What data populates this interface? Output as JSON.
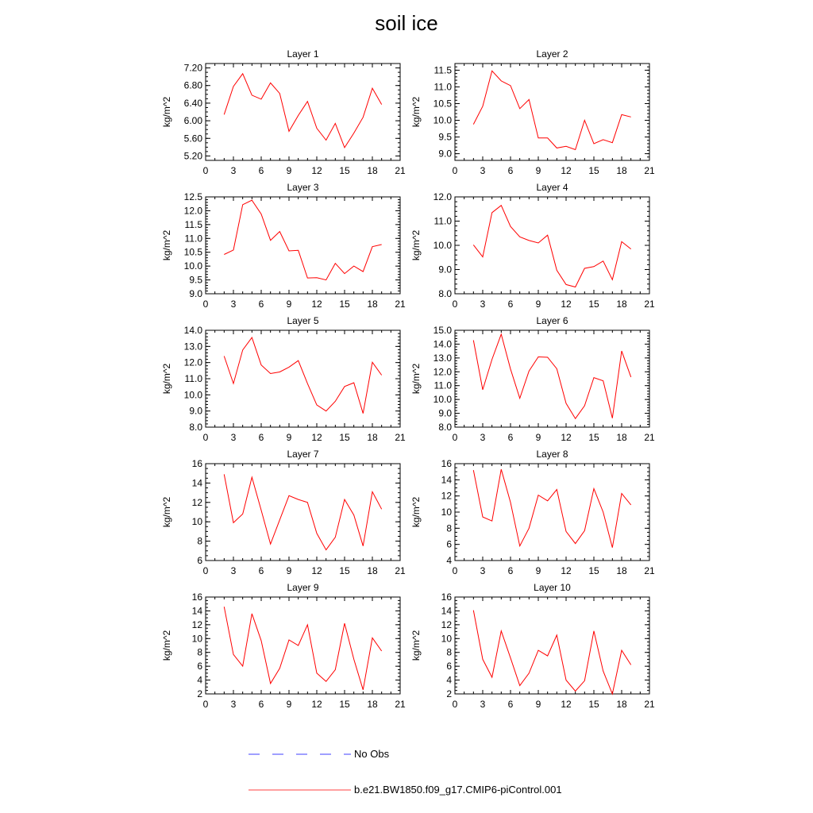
{
  "title": "soil ice",
  "legend": [
    {
      "label": "No Obs",
      "color": "#0000ff",
      "style": "dashed"
    },
    {
      "label": "b.e21.BW1850.f09_g17.CMIP6-piControl.001",
      "color": "#ff0000",
      "style": "solid"
    }
  ],
  "chart_data": [
    {
      "type": "line",
      "title": "Layer 1",
      "ylabel": "kg/m^2",
      "xlabel": "",
      "xlim": [
        0,
        21
      ],
      "xticks": [
        "0",
        "3",
        "6",
        "9",
        "12",
        "15",
        "18",
        "21"
      ],
      "ylim": [
        5.1,
        7.3
      ],
      "yticks": [
        "5.20",
        "5.60",
        "6.00",
        "6.40",
        "6.80",
        "7.20"
      ],
      "yminor": 0.1,
      "series": [
        {
          "name": "b.e21.BW1850.f09_g17.CMIP6-piControl.001",
          "color": "#ff0000",
          "x": [
            2,
            3,
            4,
            5,
            6,
            7,
            8,
            9,
            10,
            11,
            12,
            13,
            14,
            15,
            16,
            17,
            18,
            19
          ],
          "y": [
            6.14,
            6.78,
            7.07,
            6.58,
            6.49,
            6.86,
            6.62,
            5.76,
            6.12,
            6.44,
            5.83,
            5.56,
            5.94,
            5.39,
            5.72,
            6.08,
            6.74,
            6.37
          ]
        }
      ]
    },
    {
      "type": "line",
      "title": "Layer 2",
      "ylabel": "kg/m^2",
      "xlabel": "",
      "xlim": [
        0,
        21
      ],
      "xticks": [
        "0",
        "3",
        "6",
        "9",
        "12",
        "15",
        "18",
        "21"
      ],
      "ylim": [
        8.8,
        11.7
      ],
      "yticks": [
        "9.0",
        "9.5",
        "10.0",
        "10.5",
        "11.0",
        "11.5"
      ],
      "yminor": 0.1,
      "series": [
        {
          "name": "b.e21.BW1850.f09_g17.CMIP6-piControl.001",
          "color": "#ff0000",
          "x": [
            2,
            3,
            4,
            5,
            6,
            7,
            8,
            9,
            10,
            11,
            12,
            13,
            14,
            15,
            16,
            17,
            18,
            19
          ],
          "y": [
            9.88,
            10.42,
            11.48,
            11.18,
            11.04,
            10.35,
            10.62,
            9.47,
            9.47,
            9.17,
            9.22,
            9.12,
            10.0,
            9.3,
            9.42,
            9.33,
            10.17,
            10.1
          ]
        }
      ]
    },
    {
      "type": "line",
      "title": "Layer 3",
      "ylabel": "kg/m^2",
      "xlabel": "",
      "xlim": [
        0,
        21
      ],
      "xticks": [
        "0",
        "3",
        "6",
        "9",
        "12",
        "15",
        "18",
        "21"
      ],
      "ylim": [
        9.0,
        12.5
      ],
      "yticks": [
        "9.0",
        "9.5",
        "10.0",
        "10.5",
        "11.0",
        "11.5",
        "12.0",
        "12.5"
      ],
      "yminor": 0.1,
      "series": [
        {
          "name": "b.e21.BW1850.f09_g17.CMIP6-piControl.001",
          "color": "#ff0000",
          "x": [
            2,
            3,
            4,
            5,
            6,
            7,
            8,
            9,
            10,
            11,
            12,
            13,
            14,
            15,
            16,
            17,
            18,
            19
          ],
          "y": [
            10.42,
            10.58,
            12.22,
            12.38,
            11.88,
            10.93,
            11.25,
            10.55,
            10.57,
            9.57,
            9.58,
            9.5,
            10.1,
            9.73,
            10.0,
            9.8,
            10.7,
            10.78
          ]
        }
      ]
    },
    {
      "type": "line",
      "title": "Layer 4",
      "ylabel": "kg/m^2",
      "xlabel": "",
      "xlim": [
        0,
        21
      ],
      "xticks": [
        "0",
        "3",
        "6",
        "9",
        "12",
        "15",
        "18",
        "21"
      ],
      "ylim": [
        8.0,
        12.0
      ],
      "yticks": [
        "8.0",
        "9.0",
        "10.0",
        "11.0",
        "12.0"
      ],
      "yminor": 0.2,
      "series": [
        {
          "name": "b.e21.BW1850.f09_g17.CMIP6-piControl.001",
          "color": "#ff0000",
          "x": [
            2,
            3,
            4,
            5,
            6,
            7,
            8,
            9,
            10,
            11,
            12,
            13,
            14,
            15,
            16,
            17,
            18,
            19
          ],
          "y": [
            10.02,
            9.52,
            11.35,
            11.65,
            10.78,
            10.35,
            10.2,
            10.1,
            10.42,
            8.97,
            8.38,
            8.28,
            9.05,
            9.12,
            9.35,
            8.58,
            10.15,
            9.85
          ]
        }
      ]
    },
    {
      "type": "line",
      "title": "Layer 5",
      "ylabel": "kg/m^2",
      "xlabel": "",
      "xlim": [
        0,
        21
      ],
      "xticks": [
        "0",
        "3",
        "6",
        "9",
        "12",
        "15",
        "18",
        "21"
      ],
      "ylim": [
        8.0,
        14.0
      ],
      "yticks": [
        "8.0",
        "9.0",
        "10.0",
        "11.0",
        "12.0",
        "13.0",
        "14.0"
      ],
      "yminor": 0.2,
      "series": [
        {
          "name": "b.e21.BW1850.f09_g17.CMIP6-piControl.001",
          "color": "#ff0000",
          "x": [
            2,
            3,
            4,
            5,
            6,
            7,
            8,
            9,
            10,
            11,
            12,
            13,
            14,
            15,
            16,
            17,
            18,
            19
          ],
          "y": [
            12.4,
            10.7,
            12.78,
            13.55,
            11.85,
            11.32,
            11.42,
            11.72,
            12.12,
            10.7,
            9.37,
            9.0,
            9.6,
            10.52,
            10.75,
            8.85,
            12.02,
            11.22
          ]
        }
      ]
    },
    {
      "type": "line",
      "title": "Layer 6",
      "ylabel": "kg/m^2",
      "xlabel": "",
      "xlim": [
        0,
        21
      ],
      "xticks": [
        "0",
        "3",
        "6",
        "9",
        "12",
        "15",
        "18",
        "21"
      ],
      "ylim": [
        8.0,
        15.0
      ],
      "yticks": [
        "8.0",
        "9.0",
        "10.0",
        "11.0",
        "12.0",
        "13.0",
        "14.0",
        "15.0"
      ],
      "yminor": 0.2,
      "series": [
        {
          "name": "b.e21.BW1850.f09_g17.CMIP6-piControl.001",
          "color": "#ff0000",
          "x": [
            2,
            3,
            4,
            5,
            6,
            7,
            8,
            9,
            10,
            11,
            12,
            13,
            14,
            15,
            16,
            17,
            18,
            19
          ],
          "y": [
            14.28,
            10.7,
            12.9,
            14.72,
            12.2,
            10.08,
            12.05,
            13.08,
            13.05,
            12.22,
            9.72,
            8.62,
            9.55,
            11.58,
            11.35,
            8.65,
            13.5,
            11.62
          ]
        }
      ]
    },
    {
      "type": "line",
      "title": "Layer 7",
      "ylabel": "kg/m^2",
      "xlabel": "",
      "xlim": [
        0,
        21
      ],
      "xticks": [
        "0",
        "3",
        "6",
        "9",
        "12",
        "15",
        "18",
        "21"
      ],
      "ylim": [
        6,
        16
      ],
      "yticks": [
        "6",
        "8",
        "10",
        "12",
        "14",
        "16"
      ],
      "yminor": 0.5,
      "series": [
        {
          "name": "b.e21.BW1850.f09_g17.CMIP6-piControl.001",
          "color": "#ff0000",
          "x": [
            2,
            3,
            4,
            5,
            6,
            7,
            8,
            9,
            10,
            11,
            12,
            13,
            14,
            15,
            16,
            17,
            18,
            19
          ],
          "y": [
            14.9,
            9.9,
            10.8,
            14.6,
            11.2,
            7.7,
            10.2,
            12.7,
            12.3,
            12.0,
            8.8,
            7.1,
            8.4,
            12.3,
            10.7,
            7.5,
            13.1,
            11.3
          ]
        }
      ]
    },
    {
      "type": "line",
      "title": "Layer 8",
      "ylabel": "kg/m^2",
      "xlabel": "",
      "xlim": [
        0,
        21
      ],
      "xticks": [
        "0",
        "3",
        "6",
        "9",
        "12",
        "15",
        "18",
        "21"
      ],
      "ylim": [
        4,
        16
      ],
      "yticks": [
        "4",
        "6",
        "8",
        "10",
        "12",
        "14",
        "16"
      ],
      "yminor": 0.5,
      "series": [
        {
          "name": "b.e21.BW1850.f09_g17.CMIP6-piControl.001",
          "color": "#ff0000",
          "x": [
            2,
            3,
            4,
            5,
            6,
            7,
            8,
            9,
            10,
            11,
            12,
            13,
            14,
            15,
            16,
            17,
            18,
            19
          ],
          "y": [
            15.2,
            9.4,
            8.9,
            15.3,
            11.2,
            5.8,
            8.0,
            12.1,
            11.4,
            12.8,
            7.6,
            6.1,
            7.7,
            12.9,
            10.0,
            5.6,
            12.3,
            10.9
          ]
        }
      ]
    },
    {
      "type": "line",
      "title": "Layer 9",
      "ylabel": "kg/m^2",
      "xlabel": "",
      "xlim": [
        0,
        21
      ],
      "xticks": [
        "0",
        "3",
        "6",
        "9",
        "12",
        "15",
        "18",
        "21"
      ],
      "ylim": [
        2,
        16
      ],
      "yticks": [
        "2",
        "4",
        "6",
        "8",
        "10",
        "12",
        "14",
        "16"
      ],
      "yminor": 0.5,
      "series": [
        {
          "name": "b.e21.BW1850.f09_g17.CMIP6-piControl.001",
          "color": "#ff0000",
          "x": [
            2,
            3,
            4,
            5,
            6,
            7,
            8,
            9,
            10,
            11,
            12,
            13,
            14,
            15,
            16,
            17,
            18,
            19
          ],
          "y": [
            14.6,
            7.7,
            6.0,
            13.6,
            9.7,
            3.5,
            5.7,
            9.8,
            9.0,
            12.0,
            5.0,
            3.8,
            5.5,
            12.2,
            7.0,
            2.6,
            10.1,
            8.2
          ]
        }
      ]
    },
    {
      "type": "line",
      "title": "Layer 10",
      "ylabel": "kg/m^2",
      "xlabel": "",
      "xlim": [
        0,
        21
      ],
      "xticks": [
        "0",
        "3",
        "6",
        "9",
        "12",
        "15",
        "18",
        "21"
      ],
      "ylim": [
        2,
        16
      ],
      "yticks": [
        "2",
        "4",
        "6",
        "8",
        "10",
        "12",
        "14",
        "16"
      ],
      "yminor": 0.5,
      "series": [
        {
          "name": "b.e21.BW1850.f09_g17.CMIP6-piControl.001",
          "color": "#ff0000",
          "x": [
            2,
            3,
            4,
            5,
            6,
            7,
            8,
            9,
            10,
            11,
            12,
            13,
            14,
            15,
            16,
            17,
            18,
            19
          ],
          "y": [
            14.1,
            7.0,
            4.4,
            11.1,
            7.2,
            3.2,
            5.0,
            8.3,
            7.5,
            10.5,
            4.0,
            2.4,
            3.9,
            11.1,
            5.3,
            2.0,
            8.3,
            6.2
          ]
        }
      ]
    }
  ]
}
